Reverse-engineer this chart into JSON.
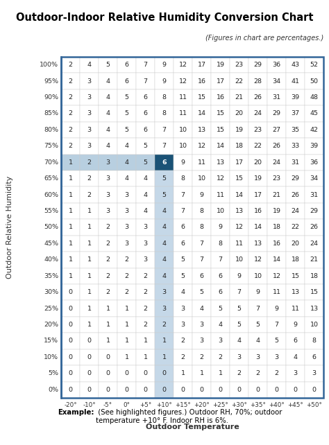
{
  "title": "Outdoor-Indoor Relative Humidity Conversion Chart",
  "subtitle": "(Figures in chart are percentages.)",
  "ylabel": "Outdoor Relative Humidity",
  "xlabel": "Outdoor Temperature",
  "col_labels": [
    "-20°",
    "-10°",
    "-5°",
    "0°",
    "+5°",
    "+10°",
    "+15°",
    "+20°",
    "+25°",
    "+30°",
    "+35°",
    "+40°",
    "+45°",
    "+50°"
  ],
  "row_labels": [
    "100%",
    "95%",
    "90%",
    "85%",
    "80%",
    "75%",
    "70%",
    "65%",
    "60%",
    "55%",
    "50%",
    "45%",
    "40%",
    "35%",
    "30%",
    "25%",
    "20%",
    "15%",
    "10%",
    "5%",
    "0%"
  ],
  "table_data": [
    [
      2,
      4,
      5,
      6,
      7,
      9,
      12,
      17,
      19,
      23,
      29,
      36,
      43,
      52
    ],
    [
      2,
      3,
      4,
      6,
      7,
      9,
      12,
      16,
      17,
      22,
      28,
      34,
      41,
      50
    ],
    [
      2,
      3,
      4,
      5,
      6,
      8,
      11,
      15,
      16,
      21,
      26,
      31,
      39,
      48
    ],
    [
      2,
      3,
      4,
      5,
      6,
      8,
      11,
      14,
      15,
      20,
      24,
      29,
      37,
      45
    ],
    [
      2,
      3,
      4,
      5,
      6,
      7,
      10,
      13,
      15,
      19,
      23,
      27,
      35,
      42
    ],
    [
      2,
      3,
      4,
      4,
      5,
      7,
      10,
      12,
      14,
      18,
      22,
      26,
      33,
      39
    ],
    [
      1,
      2,
      3,
      4,
      5,
      6,
      9,
      11,
      13,
      17,
      20,
      24,
      31,
      36
    ],
    [
      1,
      2,
      3,
      4,
      4,
      5,
      8,
      10,
      12,
      15,
      19,
      23,
      29,
      34
    ],
    [
      1,
      2,
      3,
      3,
      4,
      5,
      7,
      9,
      11,
      14,
      17,
      21,
      26,
      31
    ],
    [
      1,
      1,
      3,
      3,
      4,
      4,
      7,
      8,
      10,
      13,
      16,
      19,
      24,
      29
    ],
    [
      1,
      1,
      2,
      3,
      3,
      4,
      6,
      8,
      9,
      12,
      14,
      18,
      22,
      26
    ],
    [
      1,
      1,
      2,
      3,
      3,
      4,
      6,
      7,
      8,
      11,
      13,
      16,
      20,
      24
    ],
    [
      1,
      1,
      2,
      2,
      3,
      4,
      5,
      7,
      7,
      10,
      12,
      14,
      18,
      21
    ],
    [
      1,
      1,
      2,
      2,
      2,
      4,
      5,
      6,
      6,
      9,
      10,
      12,
      15,
      18
    ],
    [
      0,
      1,
      2,
      2,
      2,
      3,
      4,
      5,
      6,
      7,
      9,
      11,
      13,
      15
    ],
    [
      0,
      1,
      1,
      1,
      2,
      3,
      3,
      4,
      5,
      5,
      7,
      9,
      11,
      13
    ],
    [
      0,
      1,
      1,
      1,
      2,
      2,
      3,
      3,
      4,
      5,
      5,
      7,
      9,
      10
    ],
    [
      0,
      0,
      1,
      1,
      1,
      1,
      2,
      3,
      3,
      4,
      4,
      5,
      6,
      8
    ],
    [
      0,
      0,
      0,
      1,
      1,
      1,
      2,
      2,
      2,
      3,
      3,
      3,
      4,
      6
    ],
    [
      0,
      0,
      0,
      0,
      0,
      0,
      1,
      1,
      1,
      2,
      2,
      2,
      3,
      3
    ],
    [
      0,
      0,
      0,
      0,
      0,
      0,
      0,
      0,
      0,
      0,
      0,
      0,
      0,
      0
    ]
  ],
  "highlight_row": 6,
  "highlight_col": 5,
  "highlight_row_color": "#b8cfe0",
  "highlight_col_color": "#c5d8e8",
  "highlight_cell_color": "#1a5276",
  "bg_color": "#ffffff",
  "row_label_color": "#333333",
  "col_label_color": "#333333",
  "border_color": "#336699",
  "grid_color": "#cccccc",
  "text_color": "#222222",
  "title_fontsize": 10.5,
  "subtitle_fontsize": 7.0,
  "table_fontsize": 6.8,
  "label_fontsize": 8.0
}
